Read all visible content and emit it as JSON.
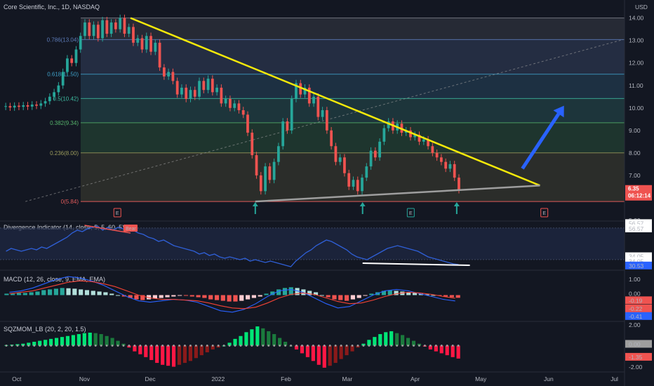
{
  "header": {
    "symbol_title": "Core Scientific, Inc., 1D, NASDAQ",
    "currency": "USD"
  },
  "colors": {
    "background": "#131722",
    "up": "#26a69a",
    "down": "#ef5350",
    "trendline": "#f5e90a",
    "support": "#9e9e9e",
    "projection": "#2962ff",
    "divergence": "#2f5fd6",
    "macd": "#2962ff",
    "signal": "#f44336"
  },
  "chart_data": [
    {
      "type": "candlestick",
      "title": "Core Scientific, Inc., 1D, NASDAQ",
      "ylabel": "USD",
      "ylim": [
        5.0,
        14.8
      ],
      "y_ticks": [
        "14.00",
        "13.00",
        "12.00",
        "11.00",
        "10.00",
        "9.00",
        "8.00",
        "7.00",
        "5.00"
      ],
      "x_labels": [
        "Oct",
        "Nov",
        "Dec",
        "2022",
        "Feb",
        "Mar",
        "Apr",
        "May",
        "Jun",
        "Jul"
      ],
      "x_dates": [
        "2021-10-01",
        "2021-11-01",
        "2021-12-01",
        "2022-01-01",
        "2022-02-01",
        "2022-03-01",
        "2022-04-01",
        "2022-05-01",
        "2022-06-01",
        "2022-07-01"
      ],
      "x_range": [
        "2021-09-25",
        "2022-07-05"
      ],
      "candles_range": [
        "2021-09-25",
        "2022-04-22"
      ],
      "last_price": "6.35",
      "countdown": "06:12:14",
      "fib_levels": [
        {
          "label": "0.786(13.04)",
          "value": 13.04
        },
        {
          "label": "0.618(11.50)",
          "value": 11.5
        },
        {
          "label": "0.5(10.42)",
          "value": 10.42
        },
        {
          "label": "0.382(9.34)",
          "value": 9.34
        },
        {
          "label": "0.236(8.00)",
          "value": 8.0
        },
        {
          "label": "0(5.84)",
          "value": 5.84
        }
      ],
      "fib_top": 14.0,
      "trendline": [
        {
          "date": "2021-11-22",
          "value": 14.0
        },
        {
          "date": "2022-05-28",
          "value": 6.55
        }
      ],
      "support_line": [
        {
          "date": "2022-01-18",
          "value": 5.84
        },
        {
          "date": "2022-05-28",
          "value": 6.55
        }
      ],
      "diagonal": [
        {
          "date": "2021-10-05",
          "value": 5.84
        },
        {
          "date": "2022-07-05",
          "value": 13.04
        }
      ],
      "projection_arrow": [
        {
          "date": "2022-05-20",
          "value": 7.3
        },
        {
          "date": "2022-06-08",
          "value": 10.1
        }
      ],
      "signal_arrows": [
        "2022-01-18",
        "2022-03-08",
        "2022-04-20"
      ],
      "earnings": [
        "2021-11-16",
        "2022-03-30",
        "2022-05-30"
      ],
      "points": [
        [
          10.05,
          10.08
        ],
        [
          10.08,
          10.02
        ],
        [
          10.02,
          10.1
        ],
        [
          10.1,
          10.05
        ],
        [
          10.05,
          10.12
        ],
        [
          10.12,
          10.06
        ],
        [
          10.06,
          10.15
        ],
        [
          10.15,
          10.1
        ],
        [
          10.1,
          10.2
        ],
        [
          10.2,
          10.3
        ],
        [
          10.3,
          10.5
        ],
        [
          10.5,
          10.7
        ],
        [
          10.7,
          11.0
        ],
        [
          11.0,
          11.6
        ],
        [
          11.6,
          12.2
        ],
        [
          12.2,
          12.0
        ],
        [
          12.0,
          12.6
        ],
        [
          12.6,
          13.2
        ],
        [
          13.2,
          13.8
        ],
        [
          13.8,
          13.2
        ],
        [
          13.2,
          13.7
        ],
        [
          13.7,
          13.1
        ],
        [
          13.1,
          13.9
        ],
        [
          13.9,
          13.3
        ],
        [
          13.3,
          13.8
        ],
        [
          13.8,
          13.5
        ],
        [
          13.5,
          14.0
        ],
        [
          14.0,
          13.3
        ],
        [
          13.3,
          13.6
        ],
        [
          13.6,
          12.9
        ],
        [
          12.9,
          13.1
        ],
        [
          13.1,
          12.6
        ],
        [
          12.6,
          13.2
        ],
        [
          13.2,
          12.5
        ],
        [
          12.5,
          12.9
        ],
        [
          12.9,
          11.8
        ],
        [
          11.8,
          11.4
        ],
        [
          11.4,
          11.6
        ],
        [
          11.6,
          11.2
        ],
        [
          11.2,
          10.6
        ],
        [
          10.6,
          10.9
        ],
        [
          10.9,
          10.4
        ],
        [
          10.4,
          10.8
        ],
        [
          10.8,
          10.5
        ],
        [
          10.5,
          11.2
        ],
        [
          11.2,
          10.8
        ],
        [
          10.8,
          11.3
        ],
        [
          11.3,
          10.7
        ],
        [
          10.7,
          10.9
        ],
        [
          10.9,
          10.2
        ],
        [
          10.2,
          10.4
        ],
        [
          10.4,
          10.0
        ],
        [
          10.0,
          10.2
        ],
        [
          10.2,
          9.9
        ],
        [
          9.9,
          9.7
        ],
        [
          9.7,
          8.9
        ],
        [
          8.9,
          7.9
        ],
        [
          7.9,
          7.0
        ],
        [
          7.0,
          6.3
        ],
        [
          6.3,
          7.4
        ],
        [
          7.4,
          6.8
        ],
        [
          6.8,
          7.6
        ],
        [
          7.6,
          8.3
        ],
        [
          8.3,
          9.4
        ],
        [
          9.4,
          9.0
        ],
        [
          9.0,
          10.4
        ],
        [
          10.4,
          11.1
        ],
        [
          11.1,
          10.6
        ],
        [
          10.6,
          10.9
        ],
        [
          10.9,
          10.2
        ],
        [
          10.2,
          10.5
        ],
        [
          10.5,
          9.6
        ],
        [
          9.6,
          9.9
        ],
        [
          9.9,
          9.0
        ],
        [
          9.0,
          8.3
        ],
        [
          8.3,
          7.6
        ],
        [
          7.6,
          7.8
        ],
        [
          7.8,
          7.1
        ],
        [
          7.1,
          6.5
        ],
        [
          6.5,
          6.8
        ],
        [
          6.8,
          6.3
        ],
        [
          6.3,
          6.9
        ],
        [
          6.9,
          7.4
        ],
        [
          7.4,
          8.1
        ],
        [
          8.1,
          7.8
        ],
        [
          7.8,
          8.5
        ],
        [
          8.5,
          9.1
        ],
        [
          9.1,
          9.4
        ],
        [
          9.4,
          9.0
        ],
        [
          9.0,
          9.3
        ],
        [
          9.3,
          8.9
        ],
        [
          8.9,
          9.0
        ],
        [
          9.0,
          8.7
        ],
        [
          8.7,
          8.8
        ],
        [
          8.8,
          8.5
        ],
        [
          8.5,
          8.6
        ],
        [
          8.6,
          8.3
        ],
        [
          8.3,
          8.0
        ],
        [
          8.0,
          7.8
        ],
        [
          7.8,
          7.6
        ],
        [
          7.6,
          7.3
        ],
        [
          7.3,
          7.5
        ],
        [
          7.5,
          6.9
        ],
        [
          6.9,
          6.35
        ]
      ]
    },
    {
      "type": "line",
      "title": "Divergence Indicator (14, close, 5, 5, 60, 5)",
      "ylim": [
        28,
        60
      ],
      "y_ticks": [
        "56.57",
        "56.57",
        "34.05",
        "34.05",
        "30.53"
      ],
      "bands": [
        56.57,
        34.05
      ],
      "bear_label": "Bear",
      "bear_line": [
        {
          "date": "2021-11-01",
          "value": 58.5
        },
        {
          "date": "2021-11-22",
          "value": 53.0
        }
      ],
      "divergence_line": [
        {
          "date": "2022-03-08",
          "value": 31.5
        },
        {
          "date": "2022-04-26",
          "value": 30.0
        }
      ],
      "values": [
        40,
        42,
        41,
        40,
        41,
        42,
        41,
        43,
        42,
        44,
        46,
        48,
        50,
        53,
        55,
        54,
        56,
        57,
        58,
        55,
        57,
        55,
        57,
        56,
        57,
        55,
        53,
        52,
        50,
        49,
        47,
        48,
        46,
        44,
        43,
        42,
        41,
        40,
        38,
        39,
        37,
        38,
        36,
        35,
        36,
        35,
        34,
        35,
        33,
        34,
        33,
        32,
        33,
        32,
        31,
        30,
        29,
        33,
        36,
        39,
        41,
        44,
        46,
        48,
        47,
        45,
        43,
        41,
        38,
        36,
        35,
        34,
        36,
        38,
        40,
        42,
        43,
        44,
        43,
        42,
        41,
        40,
        38,
        36,
        35,
        34,
        33,
        32,
        31,
        30.53
      ]
    },
    {
      "type": "bar",
      "title": "MACD (12, 26, close, 9, EMA, EMA)",
      "ylim": [
        -1.7,
        1.6
      ],
      "y_ticks": [
        "1.00",
        "0.00",
        "-0.19",
        "-0.22",
        "-0.41"
      ],
      "histogram": [
        0.1,
        0.1,
        0.15,
        0.15,
        0.2,
        0.25,
        0.35,
        0.4,
        0.45,
        0.5,
        0.48,
        0.45,
        0.4,
        0.35,
        0.3,
        0.25,
        0.2,
        0.1,
        0.0,
        -0.1,
        -0.2,
        -0.3,
        -0.35,
        -0.3,
        -0.25,
        -0.2,
        -0.15,
        -0.1,
        -0.05,
        -0.05,
        -0.1,
        -0.15,
        -0.2,
        -0.3,
        -0.35,
        -0.4,
        -0.45,
        -0.45,
        -0.4,
        -0.3,
        -0.2,
        -0.1,
        0.1,
        0.25,
        0.4,
        0.5,
        0.55,
        0.5,
        0.4,
        0.3,
        0.2,
        0.0,
        -0.15,
        -0.3,
        -0.35,
        -0.4,
        -0.3,
        -0.2,
        -0.05,
        0.1,
        0.2,
        0.3,
        0.35,
        0.3,
        0.25,
        0.2,
        0.15,
        0.1,
        0.05,
        0.0,
        -0.05,
        -0.1,
        -0.15,
        -0.19
      ],
      "macd": [
        0.2,
        0.3,
        0.5,
        0.8,
        1.1,
        1.3,
        1.2,
        1.0,
        0.7,
        0.3,
        -0.1,
        -0.4,
        -0.5,
        -0.4,
        -0.3,
        -0.35,
        -0.5,
        -0.8,
        -1.1,
        -1.2,
        -1.0,
        -0.6,
        -0.1,
        0.3,
        0.4,
        0.2,
        -0.2,
        -0.6,
        -0.9,
        -0.8,
        -0.4,
        0.0,
        0.3,
        0.4,
        0.3,
        0.1,
        -0.1,
        -0.3,
        -0.41
      ],
      "signal": [
        0.1,
        0.2,
        0.3,
        0.5,
        0.7,
        0.9,
        1.0,
        0.95,
        0.8,
        0.6,
        0.3,
        0.0,
        -0.2,
        -0.3,
        -0.3,
        -0.35,
        -0.4,
        -0.55,
        -0.75,
        -0.9,
        -0.95,
        -0.85,
        -0.55,
        -0.2,
        0.05,
        0.15,
        0.05,
        -0.2,
        -0.45,
        -0.6,
        -0.55,
        -0.35,
        -0.1,
        0.1,
        0.2,
        0.15,
        0.05,
        -0.1,
        -0.22
      ]
    },
    {
      "type": "bar",
      "title": "SQZMOM_LB (20, 2, 20, 1.5)",
      "ylim": [
        -2.6,
        2.3
      ],
      "y_ticks": [
        "2.00",
        "0.00",
        "-1.35",
        "-2.00"
      ],
      "values": [
        0.05,
        0.1,
        0.15,
        0.2,
        0.3,
        0.4,
        0.5,
        0.6,
        0.7,
        0.8,
        0.9,
        1.0,
        1.1,
        1.2,
        1.3,
        1.35,
        1.3,
        1.2,
        1.0,
        0.8,
        0.5,
        0.2,
        -0.2,
        -0.6,
        -0.9,
        -1.2,
        -1.5,
        -1.8,
        -2.0,
        -2.1,
        -2.2,
        -2.0,
        -1.8,
        -1.6,
        -1.3,
        -1.0,
        -0.7,
        -0.4,
        -0.2,
        0.0,
        0.3,
        0.7,
        1.0,
        1.4,
        1.7,
        2.0,
        1.8,
        1.5,
        1.2,
        0.8,
        0.4,
        0.0,
        -0.4,
        -0.8,
        -1.2,
        -1.6,
        -2.0,
        -2.3,
        -2.1,
        -1.8,
        -1.4,
        -1.0,
        -0.6,
        -0.2,
        0.2,
        0.6,
        0.9,
        1.2,
        1.4,
        1.5,
        1.3,
        1.1,
        0.8,
        0.5,
        0.2,
        -0.1,
        -0.4,
        -0.6,
        -0.8,
        -1.0,
        -1.2,
        -1.35
      ]
    }
  ]
}
